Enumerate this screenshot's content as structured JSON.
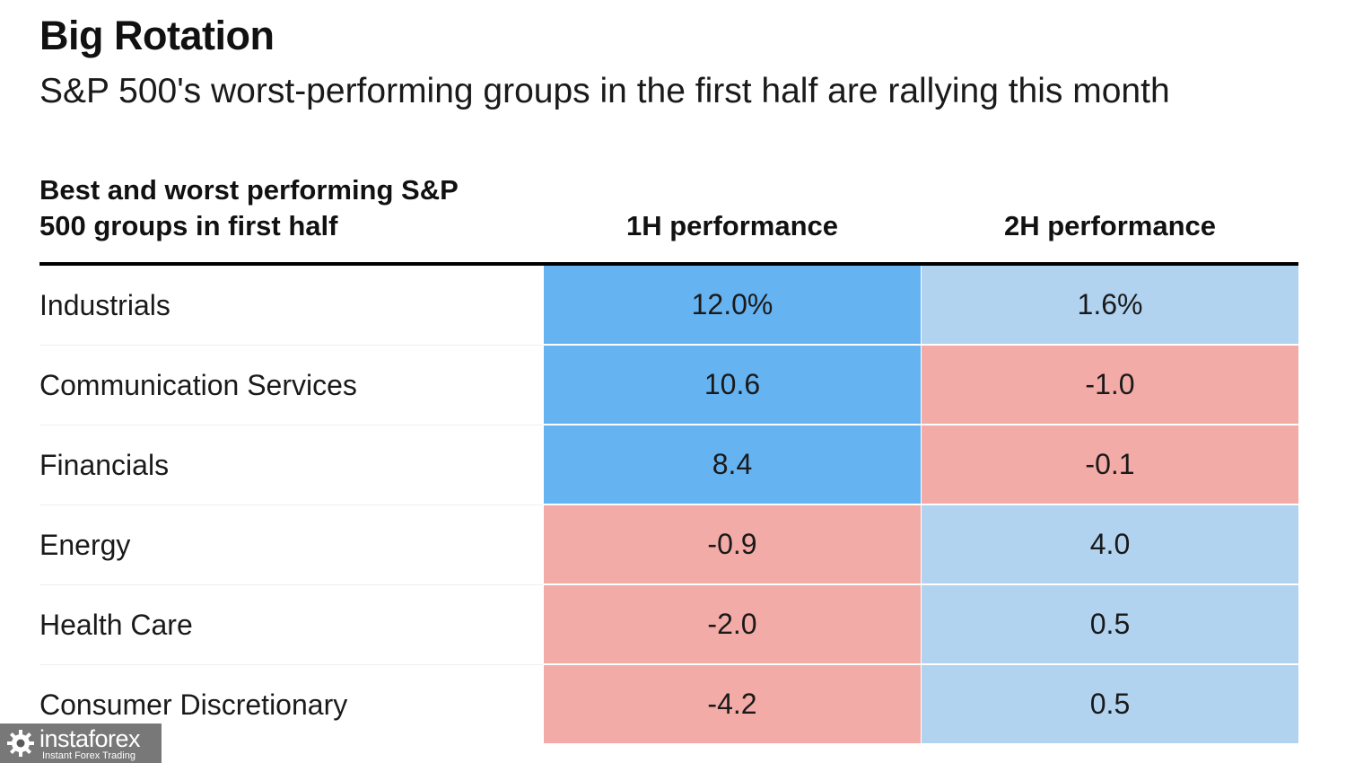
{
  "chart_data": {
    "type": "table",
    "title": "Big Rotation",
    "subtitle": "S&P 500's worst-performing groups in the first half are rallying this month",
    "columns": [
      "Best and worst performing S&P 500 groups in first half",
      "1H performance",
      "2H performance"
    ],
    "rows": [
      {
        "group": "Industrials",
        "h1": "12.0%",
        "h2": "1.6%"
      },
      {
        "group": "Communication Services",
        "h1": "10.6",
        "h2": "-1.0"
      },
      {
        "group": "Financials",
        "h1": "8.4",
        "h2": "-0.1"
      },
      {
        "group": "Energy",
        "h1": "-0.9",
        "h2": "4.0"
      },
      {
        "group": "Health Care",
        "h1": "-2.0",
        "h2": "0.5"
      },
      {
        "group": "Consumer Discretionary",
        "h1": "-4.2",
        "h2": "0.5"
      }
    ],
    "values_1h": [
      12.0,
      10.6,
      8.4,
      -0.9,
      -2.0,
      -4.2
    ],
    "values_2h": [
      1.6,
      -1.0,
      -0.1,
      4.0,
      0.5,
      0.5
    ],
    "colors": {
      "strong_positive": "#66b3f2",
      "positive": "#b1d3f0",
      "negative": "#f2aba6",
      "header_rule": "#000000"
    },
    "legend": "none",
    "grid": false
  },
  "watermark": {
    "name": "instaforex",
    "tagline": "Instant Forex Trading"
  }
}
